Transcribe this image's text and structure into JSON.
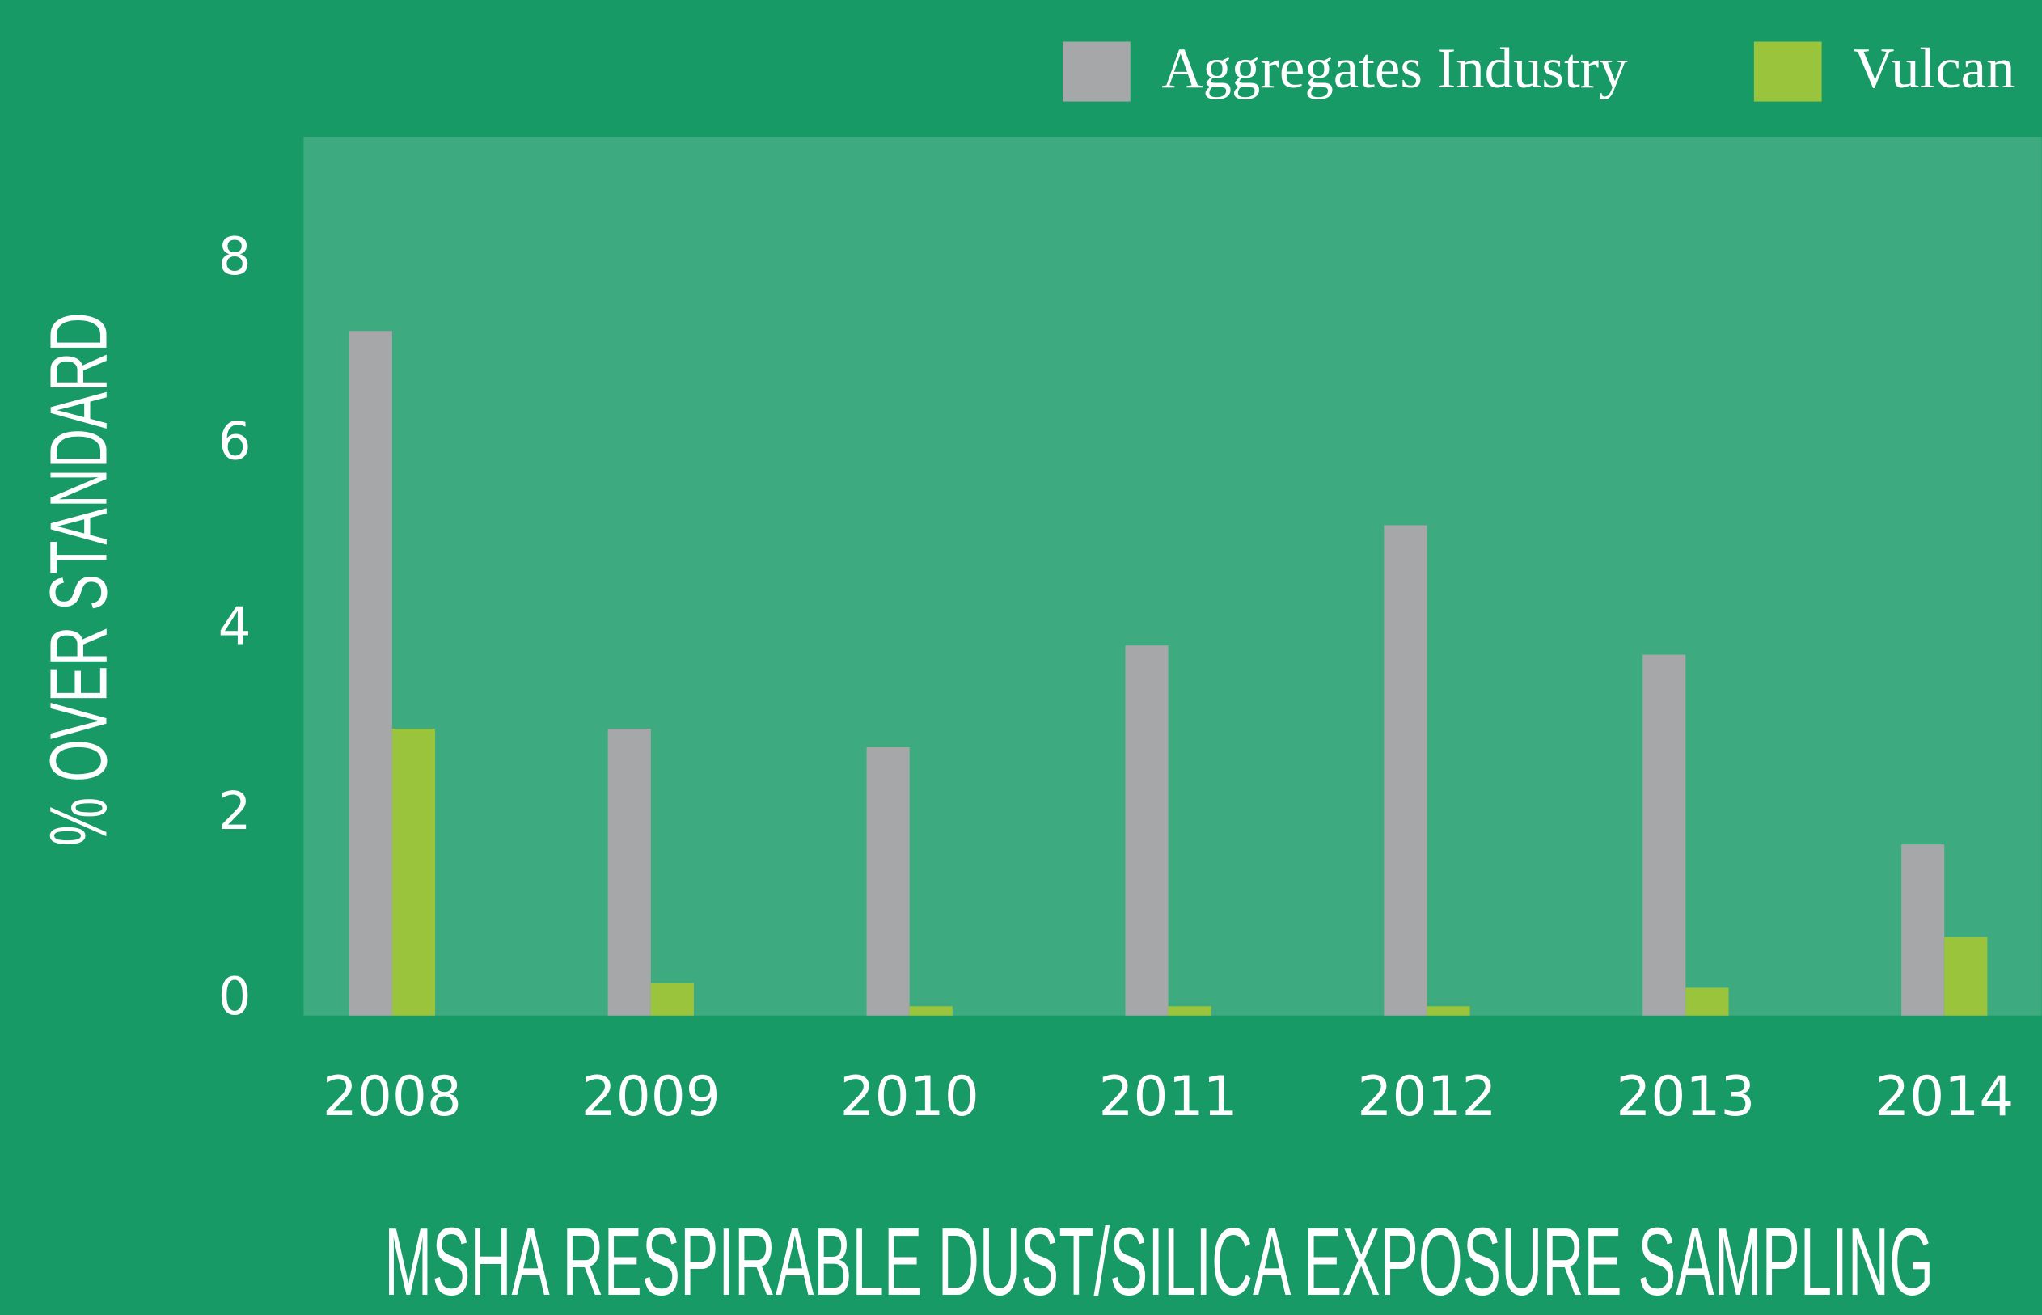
{
  "chart_data": {
    "type": "bar",
    "title": "MSHA RESPIRABLE DUST/SILICA EXPOSURE SAMPLING",
    "y_label": "% OVER STANDARD",
    "categories": [
      "2008",
      "2009",
      "2010",
      "2011",
      "2012",
      "2013",
      "2014"
    ],
    "series": [
      {
        "name": "Aggregates Industry",
        "color": "#a6a7a9",
        "values": [
          7.4,
          3.1,
          2.9,
          4.0,
          5.3,
          3.9,
          1.85
        ]
      },
      {
        "name": "Vulcan",
        "color": "#9bc43d",
        "values": [
          3.1,
          0.35,
          0.1,
          0.1,
          0.1,
          0.3,
          0.85
        ]
      }
    ],
    "ylim": [
      0,
      9.5
    ],
    "yticks": [
      0,
      2,
      4,
      6,
      8
    ],
    "grid": false,
    "legend": "top-right"
  }
}
